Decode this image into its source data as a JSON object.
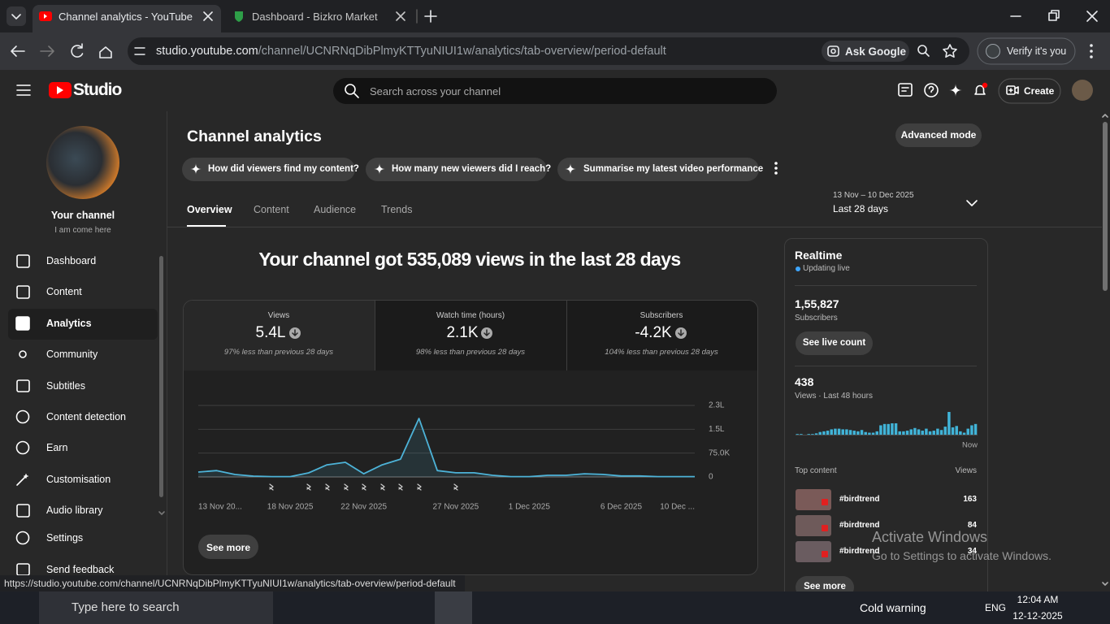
{
  "browser": {
    "tabs": [
      {
        "title": "Channel analytics - YouTube St"
      },
      {
        "title": "Dashboard - Bizkro Market"
      }
    ],
    "url_host": "studio.youtube.com",
    "url_path": "/channel/UCNRNqDibPlmyKTTyuNIUI1w/analytics/tab-overview/period-default",
    "ask_google": "Ask Google",
    "verify": "Verify it's you"
  },
  "header": {
    "logo": "Studio",
    "search_placeholder": "Search across your channel",
    "create": "Create"
  },
  "sidebar": {
    "channel_title": "Your channel",
    "channel_subtitle": "I am come here",
    "items": [
      {
        "label": "Dashboard"
      },
      {
        "label": "Content"
      },
      {
        "label": "Analytics"
      },
      {
        "label": "Community"
      },
      {
        "label": "Subtitles"
      },
      {
        "label": "Content detection"
      },
      {
        "label": "Earn"
      },
      {
        "label": "Customisation"
      },
      {
        "label": "Audio library"
      },
      {
        "label": "Settings"
      },
      {
        "label": "Send feedback"
      }
    ]
  },
  "main": {
    "title": "Channel analytics",
    "advanced_mode": "Advanced mode",
    "suggestions": [
      "How did viewers find my content?",
      "How many new viewers did I reach?",
      "Summarise my latest video performance"
    ],
    "tabs": [
      "Overview",
      "Content",
      "Audience",
      "Trends"
    ],
    "period_range": "13 Nov – 10 Dec 2025",
    "period": "Last 28 days",
    "headline": "Your channel got 535,089 views in the last 28 days",
    "metrics": [
      {
        "label": "Views",
        "value": "5.4L",
        "note": "97% less than previous 28 days"
      },
      {
        "label": "Watch time (hours)",
        "value": "2.1K",
        "note": "98% less than previous 28 days"
      },
      {
        "label": "Subscribers",
        "value": "-4.2K",
        "note": "104% less than previous 28 days"
      }
    ],
    "see_more": "See more"
  },
  "chart_data": [
    {
      "type": "line",
      "color": "#4db3d8",
      "categories": [
        "13 Nov 20...",
        null,
        null,
        null,
        null,
        "18 Nov 2025",
        null,
        null,
        null,
        "22 Nov 2025",
        null,
        null,
        null,
        null,
        "27 Nov 2025",
        null,
        null,
        null,
        "1 Dec 2025",
        null,
        null,
        null,
        null,
        "6 Dec 2025",
        null,
        null,
        null,
        "10 Dec ..."
      ],
      "values": [
        15300,
        20000,
        7700,
        2600,
        1000,
        1000,
        12800,
        38000,
        46000,
        10000,
        38000,
        56000,
        184000,
        20000,
        13000,
        13000,
        5000,
        1000,
        1000,
        5000,
        5000,
        10000,
        8000,
        3000,
        3000,
        1000,
        1000,
        1000
      ],
      "ylim": [
        0,
        225000
      ],
      "yticks": [
        0,
        {
          "value": 75000,
          "label": "75.0K"
        },
        {
          "value": 150000,
          "label": "1.5L"
        },
        {
          "value": 225000,
          "label": "2.3L"
        }
      ],
      "grid": true,
      "y_axis_side": "right"
    },
    {
      "type": "bar",
      "color": "#41b4d8",
      "categories": [
        null,
        null,
        null,
        null,
        null,
        null,
        null,
        null,
        null,
        null,
        null,
        null,
        null,
        null,
        null,
        null,
        null,
        null,
        null,
        null,
        null,
        null,
        null,
        null,
        null,
        null,
        null,
        null,
        null,
        null,
        null,
        null,
        null,
        null,
        null,
        null,
        null,
        null,
        null,
        null,
        null,
        null,
        null,
        null,
        null,
        null,
        null,
        "Now"
      ],
      "values": [
        1,
        1,
        0,
        1,
        1,
        2,
        4,
        5,
        6,
        8,
        9,
        9,
        8,
        8,
        7,
        6,
        5,
        7,
        4,
        3,
        3,
        5,
        14,
        16,
        16,
        17,
        17,
        5,
        5,
        6,
        8,
        10,
        8,
        6,
        9,
        5,
        6,
        9,
        7,
        12,
        34,
        11,
        13,
        5,
        3,
        9,
        14,
        16
      ]
    }
  ],
  "realtime": {
    "title": "Realtime",
    "status": "Updating live",
    "subscribers": "1,55,827",
    "subscribers_label": "Subscribers",
    "live_count": "See live count",
    "views": 438,
    "views_label": "Views · Last 48 hours",
    "top_content": "Top content",
    "views_header": "Views",
    "rows": [
      {
        "title": "#birdtrend",
        "views": 163
      },
      {
        "title": "#birdtrend",
        "views": 84
      },
      {
        "title": "#birdtrend",
        "views": 34
      }
    ],
    "see_more": "See more"
  },
  "watermark": {
    "title": "Activate Windows",
    "subtitle": "Go to Settings to activate Windows."
  },
  "status_url": "https://studio.youtube.com/channel/UCNRNqDibPlmyKTTyuNIUI1w/analytics/tab-overview/period-default",
  "taskbar": {
    "search": "Type here to search",
    "weather": "Cold warning",
    "lang": "ENG",
    "time": "12:04 AM",
    "date": "12-12-2025"
  }
}
